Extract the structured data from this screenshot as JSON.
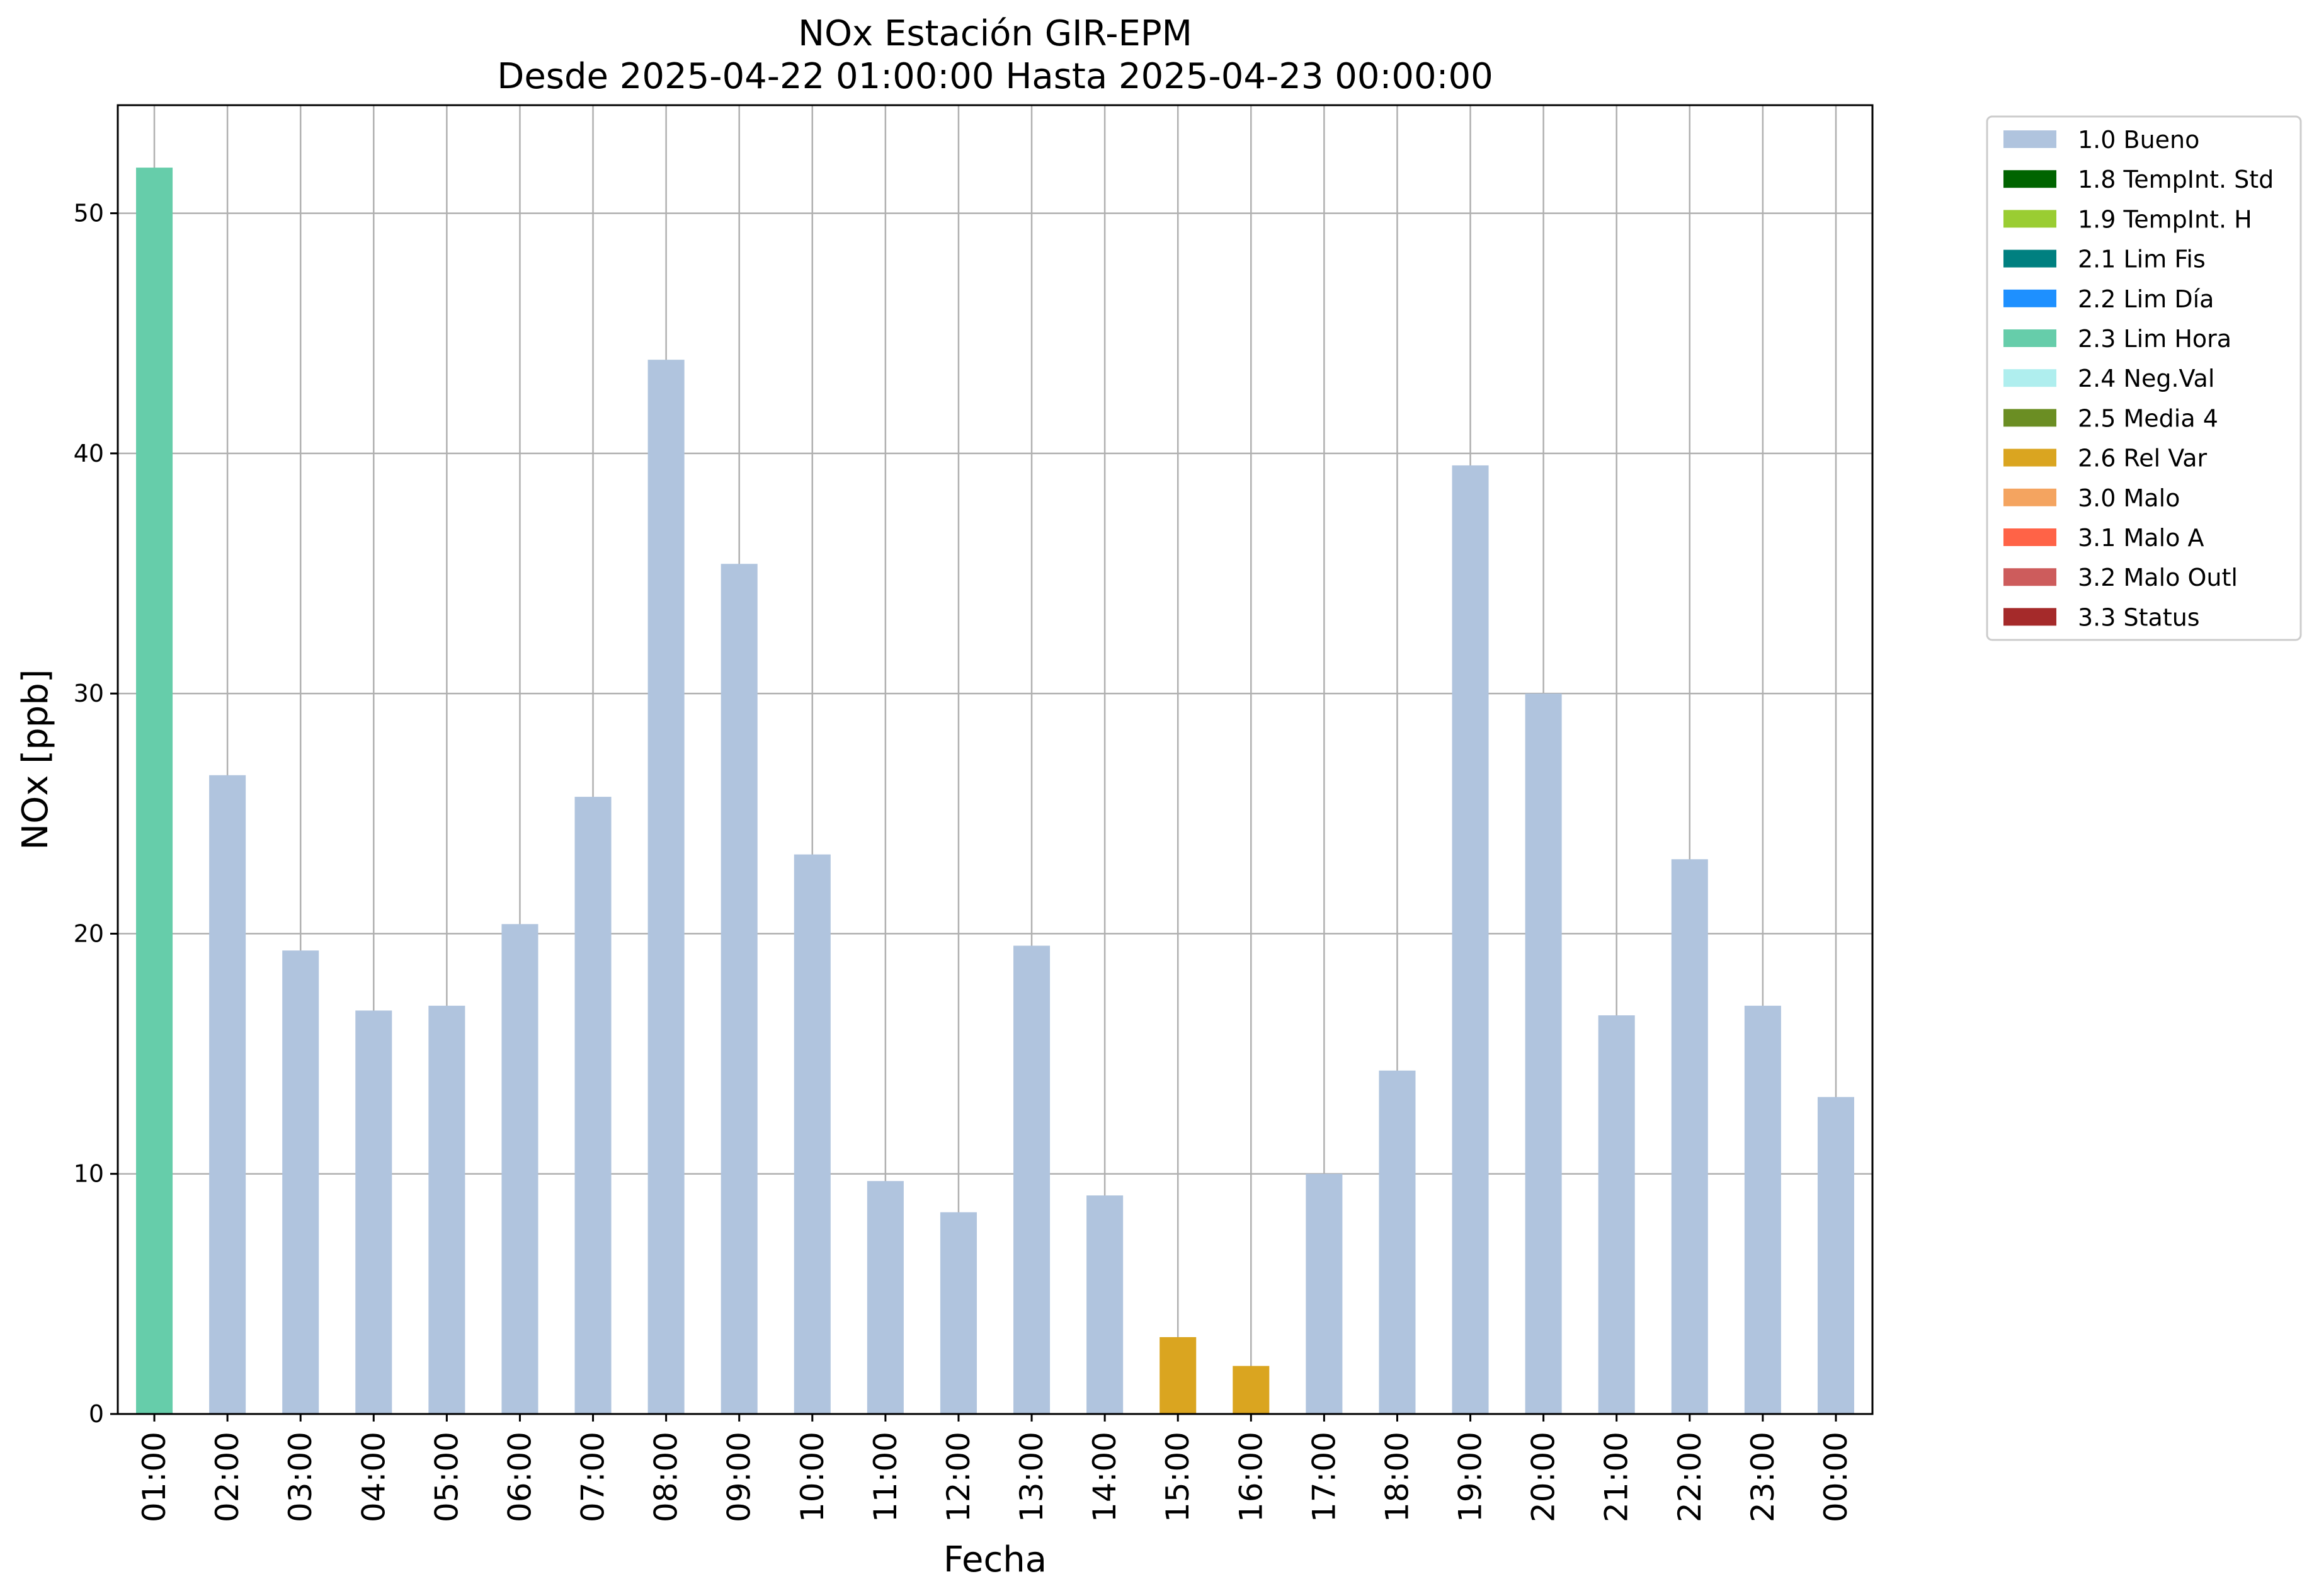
{
  "chart_data": {
    "type": "bar",
    "title_lines": [
      "NOx Estación GIR-EPM",
      "Desde 2025-04-22 01:00:00 Hasta 2025-04-23 00:00:00"
    ],
    "xlabel": "Fecha",
    "ylabel": "NOx [ppb]",
    "ylim": [
      0,
      54.5
    ],
    "yticks": [
      0,
      10,
      20,
      30,
      40,
      50
    ],
    "grid": true,
    "legend_position": "outside-right-top",
    "categories": [
      "01:00",
      "02:00",
      "03:00",
      "04:00",
      "05:00",
      "06:00",
      "07:00",
      "08:00",
      "09:00",
      "10:00",
      "11:00",
      "12:00",
      "13:00",
      "14:00",
      "15:00",
      "16:00",
      "17:00",
      "18:00",
      "19:00",
      "20:00",
      "21:00",
      "22:00",
      "23:00",
      "00:00"
    ],
    "values": [
      51.9,
      26.6,
      19.3,
      16.8,
      17.0,
      20.4,
      25.7,
      43.9,
      35.4,
      23.3,
      9.7,
      8.4,
      19.5,
      9.1,
      3.2,
      2.0,
      10.0,
      14.3,
      39.5,
      30.0,
      16.6,
      23.1,
      17.0,
      13.2
    ],
    "flags": [
      "2.3 Lim Hora",
      "1.0 Bueno",
      "1.0 Bueno",
      "1.0 Bueno",
      "1.0 Bueno",
      "1.0 Bueno",
      "1.0 Bueno",
      "1.0 Bueno",
      "1.0 Bueno",
      "1.0 Bueno",
      "1.0 Bueno",
      "1.0 Bueno",
      "1.0 Bueno",
      "1.0 Bueno",
      "2.6 Rel Var",
      "2.6 Rel Var",
      "1.0 Bueno",
      "1.0 Bueno",
      "1.0 Bueno",
      "1.0 Bueno",
      "1.0 Bueno",
      "1.0 Bueno",
      "1.0 Bueno",
      "1.0 Bueno"
    ],
    "legend": [
      {
        "label": "1.0 Bueno",
        "color": "#b0c4de"
      },
      {
        "label": "1.8 TempInt. Std",
        "color": "#006400"
      },
      {
        "label": "1.9 TempInt. H",
        "color": "#9acd32"
      },
      {
        "label": "2.1 Lim Fis",
        "color": "#008080"
      },
      {
        "label": "2.2 Lim Día",
        "color": "#1e90ff"
      },
      {
        "label": "2.3 Lim Hora",
        "color": "#66cdaa"
      },
      {
        "label": "2.4 Neg.Val",
        "color": "#afeeee"
      },
      {
        "label": "2.5 Media 4",
        "color": "#6b8e23"
      },
      {
        "label": "2.6 Rel Var",
        "color": "#daa520"
      },
      {
        "label": "3.0 Malo",
        "color": "#f4a460"
      },
      {
        "label": "3.1 Malo A",
        "color": "#ff6347"
      },
      {
        "label": "3.2 Malo Outl",
        "color": "#cd5c5c"
      },
      {
        "label": "3.3 Status",
        "color": "#a52a2a"
      }
    ]
  }
}
